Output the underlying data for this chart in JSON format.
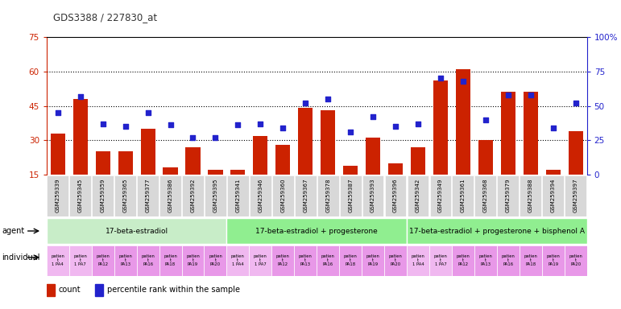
{
  "title": "GDS3388 / 227830_at",
  "gsm_ids": [
    "GSM259339",
    "GSM259345",
    "GSM259359",
    "GSM259365",
    "GSM259377",
    "GSM259386",
    "GSM259392",
    "GSM259395",
    "GSM259341",
    "GSM259346",
    "GSM259360",
    "GSM259367",
    "GSM259378",
    "GSM259387",
    "GSM259393",
    "GSM259396",
    "GSM259342",
    "GSM259349",
    "GSM259361",
    "GSM259368",
    "GSM259379",
    "GSM259388",
    "GSM259394",
    "GSM259397"
  ],
  "counts": [
    33,
    48,
    25,
    25,
    35,
    18,
    27,
    17,
    17,
    32,
    28,
    44,
    43,
    19,
    31,
    20,
    27,
    56,
    61,
    30,
    51,
    51,
    17,
    34
  ],
  "percentile_ranks": [
    45,
    57,
    37,
    35,
    45,
    36,
    27,
    27,
    36,
    37,
    34,
    52,
    55,
    31,
    42,
    35,
    37,
    70,
    68,
    40,
    58,
    58,
    34,
    52
  ],
  "agent_groups": [
    {
      "label": "17-beta-estradiol",
      "start": 0,
      "end": 8,
      "color": "#c8edc8"
    },
    {
      "label": "17-beta-estradiol + progesterone",
      "start": 8,
      "end": 16,
      "color": "#90ee90"
    },
    {
      "label": "17-beta-estradiol + progesterone + bisphenol A",
      "start": 16,
      "end": 24,
      "color": "#90ee90"
    }
  ],
  "ind_labels": [
    "patien\nt\n1 PA4",
    "patien\nt\n1 PA7",
    "patien\nt\nPA12",
    "patien\nt\nPA13",
    "patien\nt\nPA16",
    "patien\nt\nPA18",
    "patien\nt\nPA19",
    "patien\nt\nPA20"
  ],
  "ind_colors": [
    "#f0b8f0",
    "#f0b8f0",
    "#e898e8",
    "#e898e8",
    "#e898e8",
    "#e898e8",
    "#e898e8",
    "#e898e8"
  ],
  "ylim_left": [
    15,
    75
  ],
  "ylim_right": [
    0,
    100
  ],
  "yticks_left": [
    15,
    30,
    45,
    60,
    75
  ],
  "yticks_right": [
    0,
    25,
    50,
    75,
    100
  ],
  "bar_color": "#cc2200",
  "dot_color": "#2222cc",
  "axis_color_left": "#cc2200",
  "axis_color_right": "#2222cc",
  "background_color": "#ffffff",
  "xticklabel_bg": "#d8d8d8"
}
